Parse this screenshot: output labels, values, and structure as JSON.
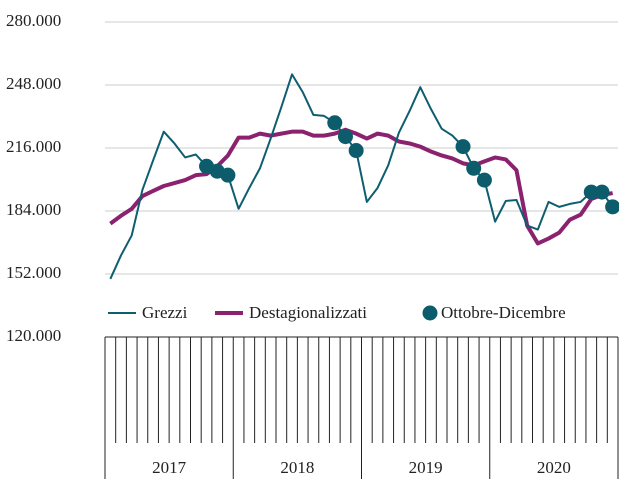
{
  "chart_data": {
    "type": "line",
    "years": [
      "2017",
      "2018",
      "2019",
      "2020"
    ],
    "series": [
      {
        "name": "Grezzi",
        "color": "#0e5e6f",
        "values": [
          149500,
          161500,
          171600,
          194700,
          209700,
          224300,
          218300,
          211200,
          212700,
          206700,
          204200,
          202200,
          185100,
          195700,
          205700,
          220800,
          236800,
          253400,
          244400,
          232800,
          232300,
          228800,
          221800,
          214700,
          188600,
          195700,
          207200,
          223800,
          234800,
          246900,
          235800,
          225800,
          222300,
          216700,
          205700,
          199700,
          178600,
          189100,
          189600,
          176600,
          174600,
          188600,
          186100,
          187600,
          188600,
          193600,
          193600,
          186100
        ]
      },
      {
        "name": "Destagionalizzati",
        "color": "#8b2270",
        "values": [
          177600,
          181600,
          185100,
          191600,
          194200,
          196700,
          198200,
          199700,
          202200,
          202700,
          206700,
          212200,
          221300,
          221300,
          223300,
          222300,
          223300,
          224300,
          224300,
          222300,
          222300,
          223300,
          225300,
          223300,
          220800,
          223300,
          222300,
          219300,
          218300,
          216700,
          214200,
          212200,
          210700,
          208200,
          207200,
          209200,
          211200,
          210200,
          204700,
          176600,
          167500,
          170000,
          173000,
          179600,
          182100,
          190100,
          192100,
          193100
        ]
      },
      {
        "name": "Ottobre-Dicembre",
        "color": "#0c5c6c",
        "kind": "scatter",
        "values": [
          null,
          null,
          null,
          null,
          null,
          null,
          null,
          null,
          null,
          206700,
          204200,
          202200,
          null,
          null,
          null,
          null,
          null,
          null,
          null,
          null,
          null,
          228800,
          221800,
          214700,
          null,
          null,
          null,
          null,
          null,
          null,
          null,
          null,
          null,
          216700,
          205700,
          199700,
          null,
          null,
          null,
          null,
          null,
          null,
          null,
          null,
          null,
          193600,
          193600,
          186100
        ]
      }
    ],
    "ylim": [
      120000,
      280000
    ],
    "yticks": [
      {
        "value": 120000,
        "label": "120.000"
      },
      {
        "value": 152000,
        "label": "152.000"
      },
      {
        "value": 184000,
        "label": "184.000"
      },
      {
        "value": 216000,
        "label": "216.000"
      },
      {
        "value": 248000,
        "label": "248.000"
      },
      {
        "value": 280000,
        "label": "280.000"
      }
    ],
    "grid": true
  }
}
